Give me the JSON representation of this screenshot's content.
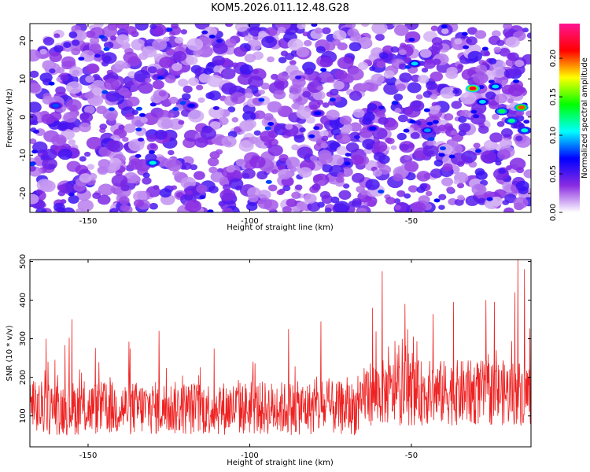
{
  "figure_title": "KOM5.2026.011.12.48.G28",
  "chart_data": [
    {
      "type": "heatmap",
      "title": "KOM5.2026.011.12.48.G28",
      "xlabel": "Height of straight line (km)",
      "ylabel": "Frequency (Hz)",
      "xlim": [
        -168,
        -13
      ],
      "ylim": [
        -25,
        24.5
      ],
      "x_ticks": [
        -150,
        -100,
        -50
      ],
      "x_tick_labels": [
        "-150",
        "-100",
        "-50"
      ],
      "y_ticks": [
        -20,
        -10,
        0,
        10,
        20
      ],
      "y_tick_labels": [
        "-20",
        "-10",
        "0",
        "10",
        "20"
      ],
      "colorbar": {
        "label": "Normalized spectral amplitude",
        "range": [
          0,
          0.245
        ],
        "ticks": [
          0,
          0.05,
          0.1,
          0.15,
          0.2
        ],
        "tick_labels": [
          "0.00",
          "0.05",
          "0.10",
          "0.15",
          "0.20"
        ],
        "colormap": [
          "#ffffff",
          "#8a2be2",
          "#0000ff",
          "#00ffff",
          "#00ff00",
          "#ffff00",
          "#ff0000",
          "#ff1493"
        ]
      },
      "background_level": 0.04,
      "hotspots": [
        {
          "x": -31,
          "y": 7.5,
          "value": 0.22
        },
        {
          "x": -16,
          "y": 2.5,
          "value": 0.2
        },
        {
          "x": -22,
          "y": 1.5,
          "value": 0.13
        },
        {
          "x": -19,
          "y": -1,
          "value": 0.12
        },
        {
          "x": -15,
          "y": -3.5,
          "value": 0.11
        },
        {
          "x": -24,
          "y": 8,
          "value": 0.1
        },
        {
          "x": -28,
          "y": 4,
          "value": 0.1
        },
        {
          "x": -130,
          "y": -12,
          "value": 0.11
        },
        {
          "x": -49,
          "y": 14,
          "value": 0.1
        },
        {
          "x": -45,
          "y": -3.5,
          "value": 0.09
        },
        {
          "x": -160,
          "y": 3,
          "value": 0.08
        },
        {
          "x": -118,
          "y": 3,
          "value": 0.07
        },
        {
          "x": -79,
          "y": 1,
          "value": 0.07
        },
        {
          "x": -62,
          "y": -3,
          "value": 0.07
        }
      ]
    },
    {
      "type": "line",
      "xlabel": "Height of straight line (km)",
      "ylabel": "SNR (10 * v/v)",
      "xlim": [
        -168,
        -13
      ],
      "ylim": [
        20,
        505
      ],
      "x_ticks": [
        -150,
        -100,
        -50
      ],
      "x_tick_labels": [
        "-150",
        "-100",
        "-50"
      ],
      "y_ticks": [
        100,
        200,
        300,
        400,
        500
      ],
      "y_tick_labels": [
        "100",
        "200",
        "300",
        "400",
        "500"
      ],
      "color": "#ee2222",
      "segments": [
        {
          "x_from": -168,
          "x_to": -65,
          "mean": 120,
          "spread": 70,
          "peak_max": 350
        },
        {
          "x_from": -65,
          "x_to": -13,
          "mean": 160,
          "spread": 85,
          "peak_max": 500
        }
      ],
      "notable_peaks": [
        {
          "x": -163,
          "y": 300
        },
        {
          "x": -155,
          "y": 350
        },
        {
          "x": -128,
          "y": 320
        },
        {
          "x": -88,
          "y": 325
        },
        {
          "x": -78,
          "y": 345
        },
        {
          "x": -62,
          "y": 380
        },
        {
          "x": -59,
          "y": 475
        },
        {
          "x": -52,
          "y": 390
        },
        {
          "x": -37,
          "y": 395
        },
        {
          "x": -27,
          "y": 400
        },
        {
          "x": -18,
          "y": 420
        },
        {
          "x": -17,
          "y": 505
        },
        {
          "x": -15,
          "y": 480
        }
      ]
    }
  ]
}
